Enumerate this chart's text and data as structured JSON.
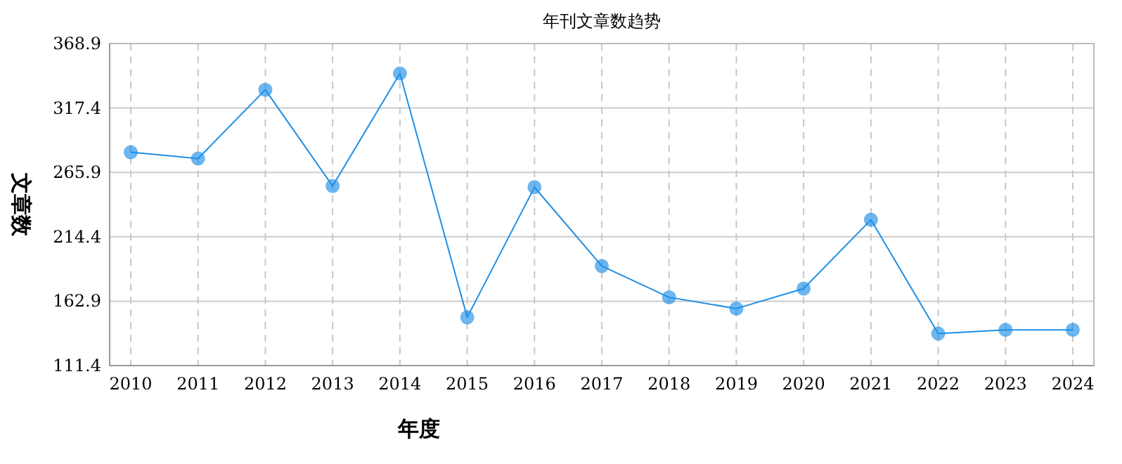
{
  "chart_data": {
    "type": "line",
    "title": "年刊文章数趋势",
    "xlabel": "年度",
    "ylabel": "文章数",
    "categories": [
      "2010",
      "2011",
      "2012",
      "2013",
      "2014",
      "2015",
      "2016",
      "2017",
      "2018",
      "2019",
      "2020",
      "2021",
      "2022",
      "2023",
      "2024"
    ],
    "series": [
      {
        "color": "#1e8fe6",
        "values": [
          282,
          277,
          332,
          255,
          345,
          150,
          254,
          191,
          166,
          157,
          173,
          228,
          137,
          140,
          140
        ]
      }
    ],
    "ylim": [
      111.4,
      368.9
    ],
    "yticks": [
      111.4,
      162.9,
      214.4,
      265.9,
      317.4,
      368.9
    ],
    "grid": true,
    "marker": "circle",
    "line_style": "solid"
  }
}
